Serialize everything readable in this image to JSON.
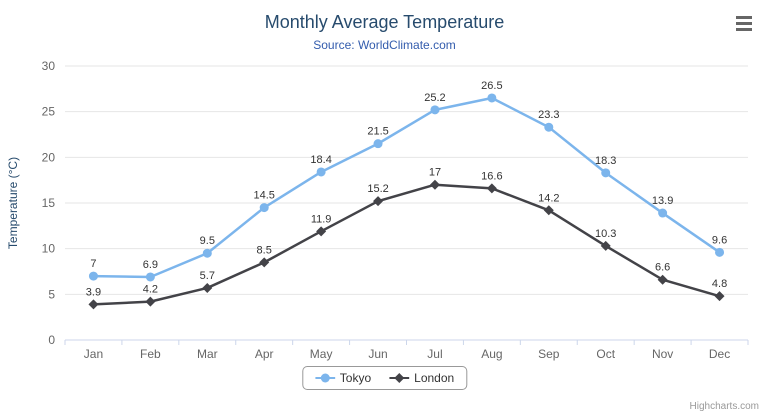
{
  "chart_data": {
    "type": "line",
    "title": "Monthly Average Temperature",
    "subtitle": "Source: WorldClimate.com",
    "categories": [
      "Jan",
      "Feb",
      "Mar",
      "Apr",
      "May",
      "Jun",
      "Jul",
      "Aug",
      "Sep",
      "Oct",
      "Nov",
      "Dec"
    ],
    "series": [
      {
        "name": "Tokyo",
        "marker": "circle",
        "color": "#7cb5ec",
        "values": [
          7,
          6.9,
          9.5,
          14.5,
          18.4,
          21.5,
          25.2,
          26.5,
          23.3,
          18.3,
          13.9,
          9.6
        ]
      },
      {
        "name": "London",
        "marker": "diamond",
        "color": "#434348",
        "values": [
          3.9,
          4.2,
          5.7,
          8.5,
          11.9,
          15.2,
          17,
          16.6,
          14.2,
          10.3,
          6.6,
          4.8
        ]
      }
    ],
    "xlabel": "",
    "ylabel": "Temperature (°C)",
    "ylim": [
      0,
      30
    ],
    "yticks": [
      0,
      5,
      10,
      15,
      20,
      25,
      30
    ],
    "grid": true,
    "legend_position": "bottom-center",
    "data_labels": true
  },
  "icons": {
    "menu": "hamburger-menu"
  },
  "credits": "Highcharts.com",
  "colors": {
    "title": "#274b6d",
    "subtitle_link": "#335cad",
    "axis_label": "#666666",
    "axis_title": "#274b6d",
    "grid": "#e6e6e6",
    "axis_line": "#ccd6eb",
    "data_label": "#333333",
    "legend_border": "#999999",
    "legend_text": "#333333",
    "credits": "#999999",
    "menu_icon": "#666666",
    "background": "#ffffff"
  }
}
